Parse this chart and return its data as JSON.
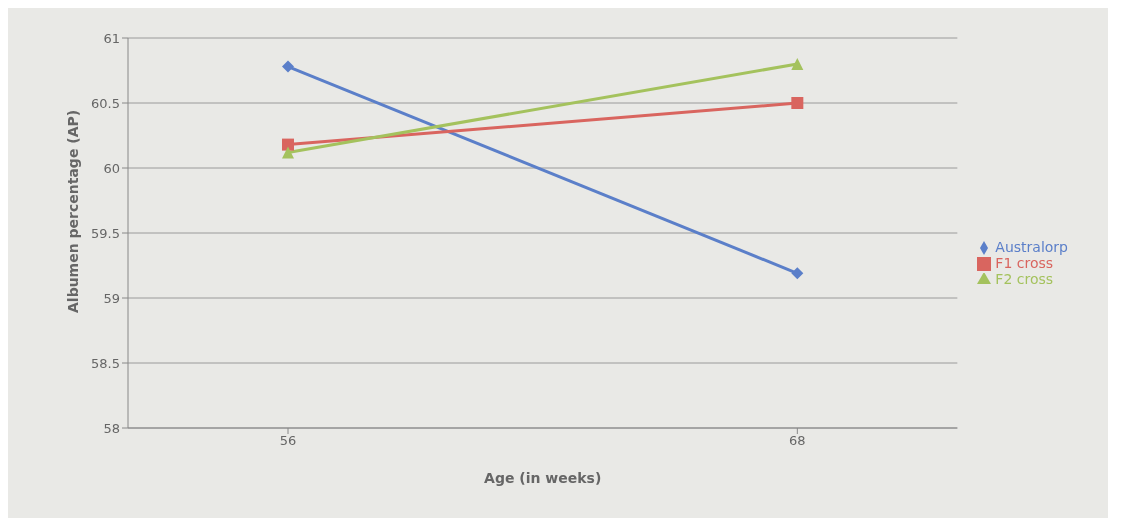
{
  "chart_data": {
    "type": "line",
    "xlabel": "Age (in weeks)",
    "ylabel": "Albumen percentage (AP)",
    "categories": [
      "56",
      "68"
    ],
    "series": [
      {
        "name": "Australorp",
        "color": "#5b7fc9",
        "values": [
          60.78,
          59.19
        ],
        "marker": "diamond"
      },
      {
        "name": "F1 cross",
        "color": "#d9655f",
        "values": [
          60.18,
          60.5
        ],
        "marker": "square"
      },
      {
        "name": "F2 cross",
        "color": "#a4c25d",
        "values": [
          60.12,
          60.8
        ],
        "marker": "triangle"
      }
    ],
    "ylim": [
      58,
      61
    ],
    "yticks": [
      58,
      58.5,
      59,
      59.5,
      60,
      60.5,
      61
    ],
    "grid": "y",
    "legend": "right",
    "line_style": "solid"
  }
}
